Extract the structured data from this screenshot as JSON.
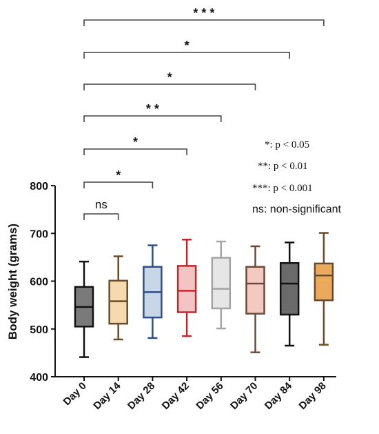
{
  "chart_data": {
    "type": "boxplot",
    "ylabel": "Body weight (grams)",
    "ylim": [
      400,
      800
    ],
    "yticks": [
      400,
      500,
      600,
      700,
      800
    ],
    "categories": [
      "Day 0",
      "Day 14",
      "Day 28",
      "Day 42",
      "Day 56",
      "Day 70",
      "Day 84",
      "Day 98"
    ],
    "boxes": [
      {
        "category": "Day 0",
        "min": 441,
        "q1": 505,
        "median": 546,
        "q3": 588,
        "max": 641,
        "fill": "#7a7a7a",
        "stroke": "#111111"
      },
      {
        "category": "Day 14",
        "min": 478,
        "q1": 511,
        "median": 558,
        "q3": 601,
        "max": 652,
        "fill": "#f7d9b0",
        "stroke": "#6b4a2a"
      },
      {
        "category": "Day 28",
        "min": 481,
        "q1": 524,
        "median": 577,
        "q3": 630,
        "max": 675,
        "fill": "#c9d6e8",
        "stroke": "#2c4f86"
      },
      {
        "category": "Day 42",
        "min": 485,
        "q1": 535,
        "median": 580,
        "q3": 632,
        "max": 687,
        "fill": "#f4c3c3",
        "stroke": "#c0282d"
      },
      {
        "category": "Day 56",
        "min": 501,
        "q1": 543,
        "median": 584,
        "q3": 649,
        "max": 683,
        "fill": "#e6e6e6",
        "stroke": "#a3a3a3"
      },
      {
        "category": "Day 70",
        "min": 451,
        "q1": 532,
        "median": 595,
        "q3": 630,
        "max": 673,
        "fill": "#f4c9c0",
        "stroke": "#6b4a3a"
      },
      {
        "category": "Day 84",
        "min": 465,
        "q1": 530,
        "median": 595,
        "q3": 638,
        "max": 681,
        "fill": "#6b6b6b",
        "stroke": "#111111"
      },
      {
        "category": "Day 98",
        "min": 467,
        "q1": 560,
        "median": 612,
        "q3": 637,
        "max": 701,
        "fill": "#eba95c",
        "stroke": "#6b4a2a"
      }
    ],
    "comparisons": [
      {
        "from": "Day 0",
        "to": "Day 14",
        "label": "ns"
      },
      {
        "from": "Day 0",
        "to": "Day 28",
        "label": "*"
      },
      {
        "from": "Day 0",
        "to": "Day 42",
        "label": "*"
      },
      {
        "from": "Day 0",
        "to": "Day 56",
        "label": "* *"
      },
      {
        "from": "Day 0",
        "to": "Day 70",
        "label": "*"
      },
      {
        "from": "Day 0",
        "to": "Day 84",
        "label": "*"
      },
      {
        "from": "Day 0",
        "to": "Day 98",
        "label": "* * *"
      }
    ],
    "legend": {
      "line1": "*: p < 0.05",
      "line2": "**: p < 0.01",
      "line3": "***: p < 0.001",
      "line4": "ns: non-significant"
    }
  }
}
